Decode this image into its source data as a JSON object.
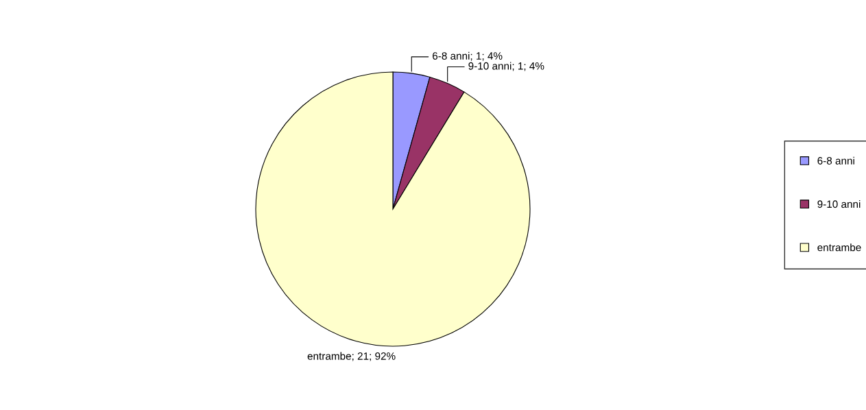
{
  "chart_data": {
    "type": "pie",
    "categories": [
      "6-8 anni",
      "9-10 anni",
      "entrambe"
    ],
    "values": [
      1,
      1,
      21
    ],
    "colors": [
      "#9999ff",
      "#993366",
      "#ffffcc"
    ],
    "value_labels": [
      "6-8 anni; 1; 4%",
      "9-10 anni; 1; 4%",
      "entrambe; 21; 92%"
    ],
    "legend": "right"
  }
}
